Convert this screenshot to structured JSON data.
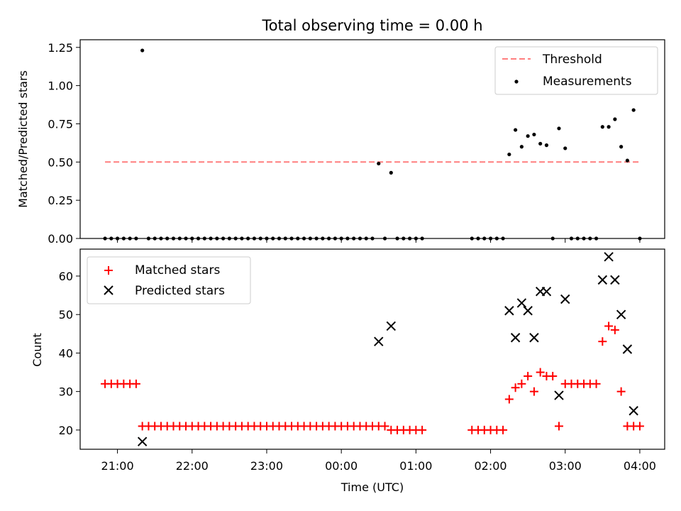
{
  "chart_data": [
    {
      "type": "scatter",
      "title": "Total observing time = 0.00 h",
      "xlabel": "",
      "ylabel": "Matched/Predicted stars",
      "x_unit": "time (UTC)",
      "xlim": [
        "20:30",
        "04:20"
      ],
      "ylim": [
        0,
        1.3
      ],
      "yticks": [
        "0.00",
        "0.25",
        "0.50",
        "0.75",
        "1.00",
        "1.25"
      ],
      "legend_position": "top-right",
      "series": [
        {
          "name": "Threshold",
          "style": "dashed-line",
          "color": "#ff7f7f",
          "points": [
            {
              "x": "20:50",
              "y": 0.5
            },
            {
              "x": "04:00",
              "y": 0.5
            }
          ]
        },
        {
          "name": "Measurements",
          "style": "dot",
          "color": "#000000",
          "points": [
            {
              "x": "20:50",
              "y": 0
            },
            {
              "x": "20:55",
              "y": 0
            },
            {
              "x": "21:00",
              "y": 0
            },
            {
              "x": "21:05",
              "y": 0
            },
            {
              "x": "21:10",
              "y": 0
            },
            {
              "x": "21:15",
              "y": 0
            },
            {
              "x": "21:20",
              "y": 1.23
            },
            {
              "x": "21:25",
              "y": 0
            },
            {
              "x": "21:30",
              "y": 0
            },
            {
              "x": "21:35",
              "y": 0
            },
            {
              "x": "21:40",
              "y": 0
            },
            {
              "x": "21:45",
              "y": 0
            },
            {
              "x": "21:50",
              "y": 0
            },
            {
              "x": "21:55",
              "y": 0
            },
            {
              "x": "22:00",
              "y": 0
            },
            {
              "x": "22:05",
              "y": 0
            },
            {
              "x": "22:10",
              "y": 0
            },
            {
              "x": "22:15",
              "y": 0
            },
            {
              "x": "22:20",
              "y": 0
            },
            {
              "x": "22:25",
              "y": 0
            },
            {
              "x": "22:30",
              "y": 0
            },
            {
              "x": "22:35",
              "y": 0
            },
            {
              "x": "22:40",
              "y": 0
            },
            {
              "x": "22:45",
              "y": 0
            },
            {
              "x": "22:50",
              "y": 0
            },
            {
              "x": "22:55",
              "y": 0
            },
            {
              "x": "23:00",
              "y": 0
            },
            {
              "x": "23:05",
              "y": 0
            },
            {
              "x": "23:10",
              "y": 0
            },
            {
              "x": "23:15",
              "y": 0
            },
            {
              "x": "23:20",
              "y": 0
            },
            {
              "x": "23:25",
              "y": 0
            },
            {
              "x": "23:30",
              "y": 0
            },
            {
              "x": "23:35",
              "y": 0
            },
            {
              "x": "23:40",
              "y": 0
            },
            {
              "x": "23:45",
              "y": 0
            },
            {
              "x": "23:50",
              "y": 0
            },
            {
              "x": "23:55",
              "y": 0
            },
            {
              "x": "00:00",
              "y": 0
            },
            {
              "x": "00:05",
              "y": 0
            },
            {
              "x": "00:10",
              "y": 0
            },
            {
              "x": "00:15",
              "y": 0
            },
            {
              "x": "00:20",
              "y": 0
            },
            {
              "x": "00:25",
              "y": 0
            },
            {
              "x": "00:30",
              "y": 0.49
            },
            {
              "x": "00:35",
              "y": 0
            },
            {
              "x": "00:40",
              "y": 0.43
            },
            {
              "x": "00:45",
              "y": 0
            },
            {
              "x": "00:50",
              "y": 0
            },
            {
              "x": "00:55",
              "y": 0
            },
            {
              "x": "01:00",
              "y": 0
            },
            {
              "x": "01:05",
              "y": 0
            },
            {
              "x": "01:45",
              "y": 0
            },
            {
              "x": "01:50",
              "y": 0
            },
            {
              "x": "01:55",
              "y": 0
            },
            {
              "x": "02:00",
              "y": 0
            },
            {
              "x": "02:05",
              "y": 0
            },
            {
              "x": "02:10",
              "y": 0
            },
            {
              "x": "02:15",
              "y": 0.55
            },
            {
              "x": "02:20",
              "y": 0.71
            },
            {
              "x": "02:25",
              "y": 0.6
            },
            {
              "x": "02:30",
              "y": 0.67
            },
            {
              "x": "02:35",
              "y": 0.68
            },
            {
              "x": "02:40",
              "y": 0.62
            },
            {
              "x": "02:45",
              "y": 0.61
            },
            {
              "x": "02:50",
              "y": 0
            },
            {
              "x": "02:55",
              "y": 0.72
            },
            {
              "x": "03:00",
              "y": 0.59
            },
            {
              "x": "03:05",
              "y": 0
            },
            {
              "x": "03:10",
              "y": 0
            },
            {
              "x": "03:15",
              "y": 0
            },
            {
              "x": "03:20",
              "y": 0
            },
            {
              "x": "03:25",
              "y": 0
            },
            {
              "x": "03:30",
              "y": 0.73
            },
            {
              "x": "03:35",
              "y": 0.73
            },
            {
              "x": "03:40",
              "y": 0.78
            },
            {
              "x": "03:45",
              "y": 0.6
            },
            {
              "x": "03:50",
              "y": 0.51
            },
            {
              "x": "03:55",
              "y": 0.84
            },
            {
              "x": "04:00",
              "y": 0
            }
          ]
        }
      ]
    },
    {
      "type": "scatter",
      "title": "",
      "xlabel": "Time (UTC)",
      "ylabel": "Count",
      "x_unit": "time (UTC)",
      "xlim": [
        "20:30",
        "04:20"
      ],
      "ylim": [
        15,
        67
      ],
      "yticks": [
        "20",
        "30",
        "40",
        "50",
        "60"
      ],
      "xticks": [
        "21:00",
        "22:00",
        "23:00",
        "00:00",
        "01:00",
        "02:00",
        "03:00",
        "04:00"
      ],
      "legend_position": "top-left",
      "series": [
        {
          "name": "Matched stars",
          "marker": "plus",
          "color": "#ff0000",
          "points": [
            {
              "x": "20:50",
              "y": 32
            },
            {
              "x": "20:55",
              "y": 32
            },
            {
              "x": "21:00",
              "y": 32
            },
            {
              "x": "21:05",
              "y": 32
            },
            {
              "x": "21:10",
              "y": 32
            },
            {
              "x": "21:15",
              "y": 32
            },
            {
              "x": "21:20",
              "y": 21
            },
            {
              "x": "21:25",
              "y": 21
            },
            {
              "x": "21:30",
              "y": 21
            },
            {
              "x": "21:35",
              "y": 21
            },
            {
              "x": "21:40",
              "y": 21
            },
            {
              "x": "21:45",
              "y": 21
            },
            {
              "x": "21:50",
              "y": 21
            },
            {
              "x": "21:55",
              "y": 21
            },
            {
              "x": "22:00",
              "y": 21
            },
            {
              "x": "22:05",
              "y": 21
            },
            {
              "x": "22:10",
              "y": 21
            },
            {
              "x": "22:15",
              "y": 21
            },
            {
              "x": "22:20",
              "y": 21
            },
            {
              "x": "22:25",
              "y": 21
            },
            {
              "x": "22:30",
              "y": 21
            },
            {
              "x": "22:35",
              "y": 21
            },
            {
              "x": "22:40",
              "y": 21
            },
            {
              "x": "22:45",
              "y": 21
            },
            {
              "x": "22:50",
              "y": 21
            },
            {
              "x": "22:55",
              "y": 21
            },
            {
              "x": "23:00",
              "y": 21
            },
            {
              "x": "23:05",
              "y": 21
            },
            {
              "x": "23:10",
              "y": 21
            },
            {
              "x": "23:15",
              "y": 21
            },
            {
              "x": "23:20",
              "y": 21
            },
            {
              "x": "23:25",
              "y": 21
            },
            {
              "x": "23:30",
              "y": 21
            },
            {
              "x": "23:35",
              "y": 21
            },
            {
              "x": "23:40",
              "y": 21
            },
            {
              "x": "23:45",
              "y": 21
            },
            {
              "x": "23:50",
              "y": 21
            },
            {
              "x": "23:55",
              "y": 21
            },
            {
              "x": "00:00",
              "y": 21
            },
            {
              "x": "00:05",
              "y": 21
            },
            {
              "x": "00:10",
              "y": 21
            },
            {
              "x": "00:15",
              "y": 21
            },
            {
              "x": "00:20",
              "y": 21
            },
            {
              "x": "00:25",
              "y": 21
            },
            {
              "x": "00:30",
              "y": 21
            },
            {
              "x": "00:35",
              "y": 21
            },
            {
              "x": "00:40",
              "y": 20
            },
            {
              "x": "00:45",
              "y": 20
            },
            {
              "x": "00:50",
              "y": 20
            },
            {
              "x": "00:55",
              "y": 20
            },
            {
              "x": "01:00",
              "y": 20
            },
            {
              "x": "01:05",
              "y": 20
            },
            {
              "x": "01:45",
              "y": 20
            },
            {
              "x": "01:50",
              "y": 20
            },
            {
              "x": "01:55",
              "y": 20
            },
            {
              "x": "02:00",
              "y": 20
            },
            {
              "x": "02:05",
              "y": 20
            },
            {
              "x": "02:10",
              "y": 20
            },
            {
              "x": "02:15",
              "y": 28
            },
            {
              "x": "02:20",
              "y": 31
            },
            {
              "x": "02:25",
              "y": 32
            },
            {
              "x": "02:30",
              "y": 34
            },
            {
              "x": "02:35",
              "y": 30
            },
            {
              "x": "02:40",
              "y": 35
            },
            {
              "x": "02:45",
              "y": 34
            },
            {
              "x": "02:50",
              "y": 34
            },
            {
              "x": "02:55",
              "y": 21
            },
            {
              "x": "03:00",
              "y": 32
            },
            {
              "x": "03:05",
              "y": 32
            },
            {
              "x": "03:10",
              "y": 32
            },
            {
              "x": "03:15",
              "y": 32
            },
            {
              "x": "03:20",
              "y": 32
            },
            {
              "x": "03:25",
              "y": 32
            },
            {
              "x": "03:30",
              "y": 43
            },
            {
              "x": "03:35",
              "y": 47
            },
            {
              "x": "03:40",
              "y": 46
            },
            {
              "x": "03:45",
              "y": 30
            },
            {
              "x": "03:50",
              "y": 21
            },
            {
              "x": "03:55",
              "y": 21
            },
            {
              "x": "04:00",
              "y": 21
            }
          ]
        },
        {
          "name": "Predicted stars",
          "marker": "x",
          "color": "#000000",
          "points": [
            {
              "x": "21:20",
              "y": 17
            },
            {
              "x": "00:30",
              "y": 43
            },
            {
              "x": "00:40",
              "y": 47
            },
            {
              "x": "02:15",
              "y": 51
            },
            {
              "x": "02:20",
              "y": 44
            },
            {
              "x": "02:25",
              "y": 53
            },
            {
              "x": "02:30",
              "y": 51
            },
            {
              "x": "02:35",
              "y": 44
            },
            {
              "x": "02:40",
              "y": 56
            },
            {
              "x": "02:45",
              "y": 56
            },
            {
              "x": "02:55",
              "y": 29
            },
            {
              "x": "03:00",
              "y": 54
            },
            {
              "x": "03:30",
              "y": 59
            },
            {
              "x": "03:35",
              "y": 65
            },
            {
              "x": "03:40",
              "y": 59
            },
            {
              "x": "03:45",
              "y": 50
            },
            {
              "x": "03:50",
              "y": 41
            },
            {
              "x": "03:55",
              "y": 25
            }
          ]
        }
      ]
    }
  ]
}
